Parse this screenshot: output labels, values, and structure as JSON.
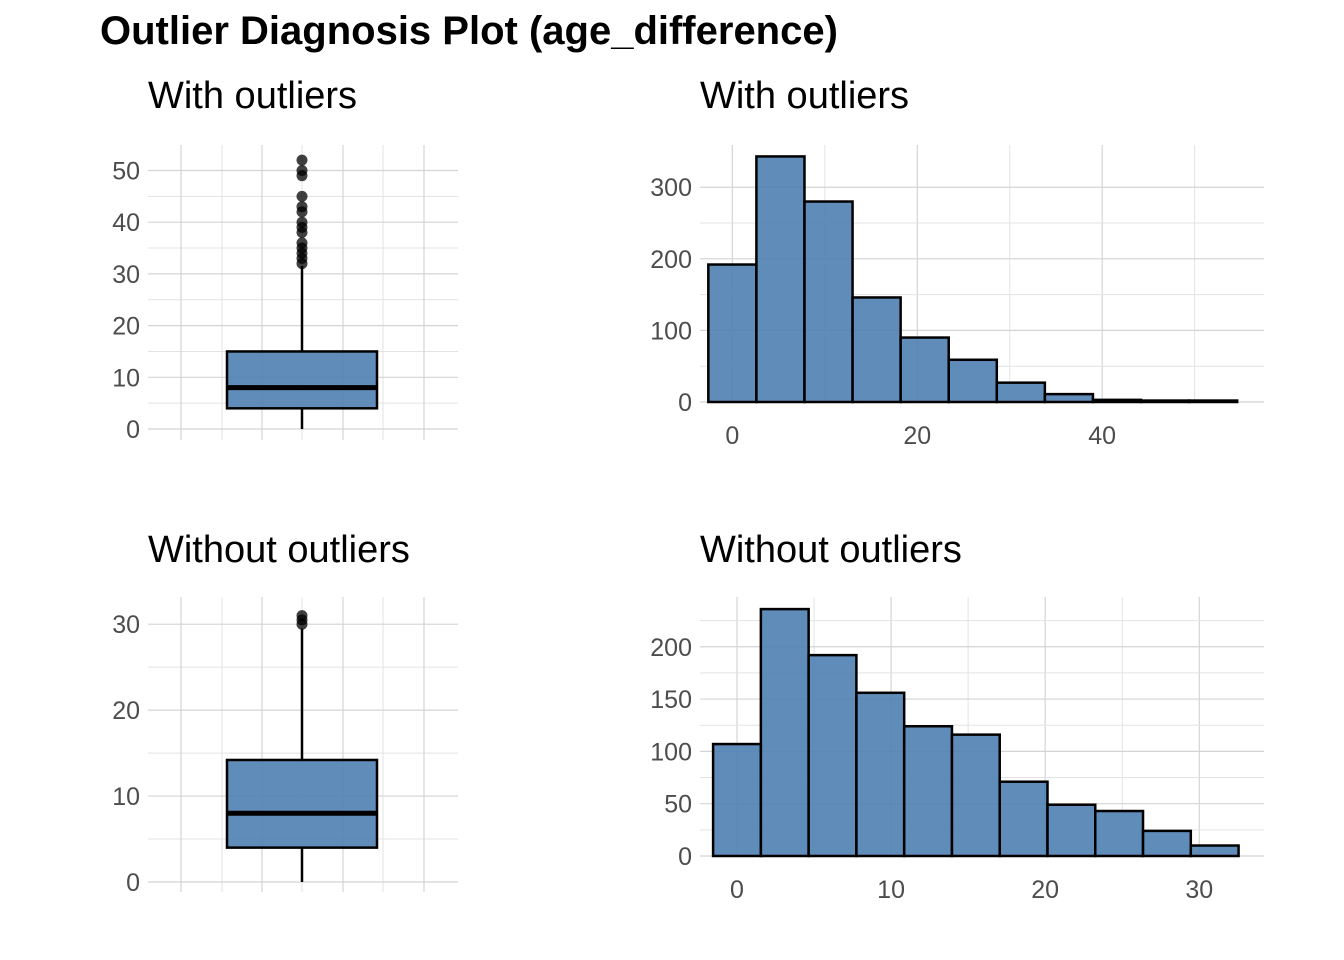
{
  "title": "Outlier Diagnosis Plot (age_difference)",
  "colors": {
    "fill": "#4f7fb1",
    "outline": "#000000",
    "grid": "#d4d4d4",
    "tick_text": "#4d4d4d"
  },
  "chart_data": [
    {
      "type": "box",
      "title": "With outliers",
      "ylim": [
        0,
        53
      ],
      "yticks": [
        0,
        10,
        20,
        30,
        40,
        50
      ],
      "grid": true,
      "stats": {
        "min": 0,
        "q1": 4,
        "median": 8,
        "q3": 15,
        "whisker_high": 31.5
      },
      "outliers": [
        32,
        33,
        34,
        35,
        36,
        38,
        39,
        40,
        42,
        43,
        45,
        49,
        50,
        52
      ]
    },
    {
      "type": "histogram",
      "title": "With outliers",
      "xlim": [
        -3.5,
        57.5
      ],
      "ylim": [
        0,
        345
      ],
      "xticks": [
        0,
        20,
        40
      ],
      "yticks": [
        0,
        100,
        200,
        300
      ],
      "grid": true,
      "bins": [
        {
          "x0": -2.6,
          "x1": 2.6,
          "count": 192
        },
        {
          "x0": 2.6,
          "x1": 7.8,
          "count": 343
        },
        {
          "x0": 7.8,
          "x1": 13.0,
          "count": 280
        },
        {
          "x0": 13.0,
          "x1": 18.2,
          "count": 146
        },
        {
          "x0": 18.2,
          "x1": 23.4,
          "count": 90
        },
        {
          "x0": 23.4,
          "x1": 28.6,
          "count": 59
        },
        {
          "x0": 28.6,
          "x1": 33.8,
          "count": 27
        },
        {
          "x0": 33.8,
          "x1": 39.0,
          "count": 11
        },
        {
          "x0": 39.0,
          "x1": 44.2,
          "count": 3
        },
        {
          "x0": 44.2,
          "x1": 49.4,
          "count": 2
        },
        {
          "x0": 49.4,
          "x1": 54.6,
          "count": 2
        }
      ]
    },
    {
      "type": "box",
      "title": "Without outliers",
      "ylim": [
        0,
        32
      ],
      "yticks": [
        0,
        10,
        20,
        30
      ],
      "grid": true,
      "stats": {
        "min": 0,
        "q1": 4,
        "median": 8,
        "q3": 14.2,
        "whisker_high": 29.5
      },
      "outliers": [
        30,
        30.5,
        31
      ]
    },
    {
      "type": "histogram",
      "title": "Without outliers",
      "xlim": [
        -2.4,
        34.2
      ],
      "ylim": [
        0,
        238
      ],
      "xticks": [
        0,
        10,
        20,
        30
      ],
      "yticks": [
        0,
        50,
        100,
        150,
        200
      ],
      "grid": true,
      "bins": [
        {
          "x0": -1.55,
          "x1": 1.55,
          "count": 107
        },
        {
          "x0": 1.55,
          "x1": 4.65,
          "count": 236
        },
        {
          "x0": 4.65,
          "x1": 7.75,
          "count": 192
        },
        {
          "x0": 7.75,
          "x1": 10.85,
          "count": 156
        },
        {
          "x0": 10.85,
          "x1": 13.95,
          "count": 124
        },
        {
          "x0": 13.95,
          "x1": 17.05,
          "count": 116
        },
        {
          "x0": 17.05,
          "x1": 20.15,
          "count": 71
        },
        {
          "x0": 20.15,
          "x1": 23.25,
          "count": 49
        },
        {
          "x0": 23.25,
          "x1": 26.35,
          "count": 43
        },
        {
          "x0": 26.35,
          "x1": 29.45,
          "count": 24
        },
        {
          "x0": 29.45,
          "x1": 32.55,
          "count": 10
        }
      ]
    }
  ]
}
